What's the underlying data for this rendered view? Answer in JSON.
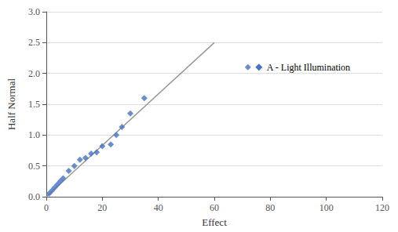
{
  "chart_data": {
    "type": "scatter",
    "xlabel": "Effect",
    "ylabel": "Half Normal",
    "xlim": [
      0,
      120
    ],
    "ylim": [
      0,
      3
    ],
    "xticks": [
      0,
      20,
      40,
      60,
      80,
      100,
      120
    ],
    "yticks": [
      {
        "value": 0,
        "label": "0.0"
      },
      0.5,
      {
        "value": 1,
        "label": "1.0"
      },
      1.5,
      {
        "value": 2,
        "label": "2.0"
      },
      2.5,
      {
        "value": 3,
        "label": "3.0"
      }
    ],
    "grid": true,
    "series": [
      {
        "type": "line",
        "x": [
          0,
          60
        ],
        "values": [
          0,
          2.5
        ],
        "color": "#999999"
      },
      {
        "type": "scatter",
        "x": [
          1,
          2,
          3,
          4,
          5,
          6,
          8,
          10,
          12,
          14,
          16,
          18,
          20,
          23,
          25,
          27,
          30,
          35,
          72
        ],
        "values": [
          0.05,
          0.1,
          0.15,
          0.2,
          0.25,
          0.3,
          0.42,
          0.5,
          0.6,
          0.63,
          0.7,
          0.72,
          0.82,
          0.85,
          1.0,
          1.13,
          1.35,
          1.6,
          2.1
        ],
        "color": "#4472C4",
        "marker": "diamond"
      }
    ],
    "annotations": [
      {
        "text": "A - Light Illumination",
        "x": 72,
        "y": 2.1
      }
    ]
  }
}
